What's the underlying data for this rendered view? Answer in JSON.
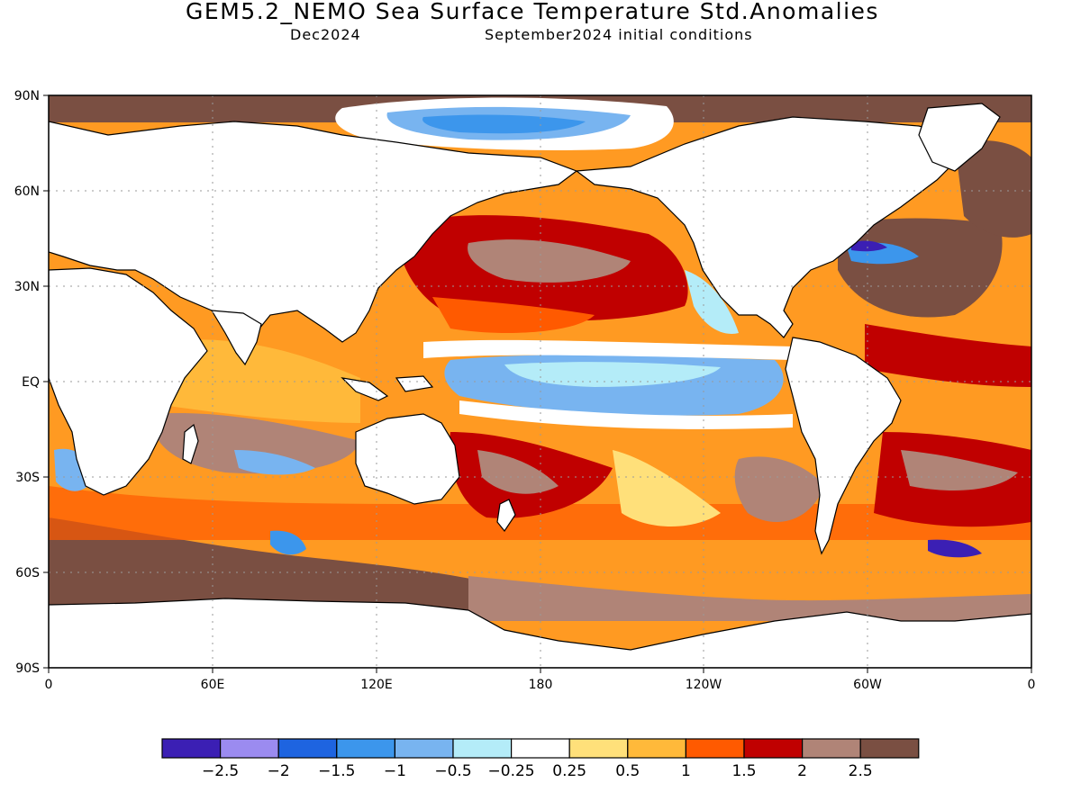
{
  "header": {
    "title": "GEM5.2_NEMO Sea Surface Temperature Std.Anomalies",
    "valid": "Dec2024",
    "init": "September2024 initial conditions"
  },
  "axes": {
    "lat_labels": [
      "90N",
      "60N",
      "30N",
      "EQ",
      "30S",
      "60S",
      "90S"
    ],
    "lon_labels": [
      "0",
      "60E",
      "120E",
      "180",
      "120W",
      "60W",
      "0"
    ]
  },
  "colorbar": {
    "colors": [
      "#3b1fb4",
      "#9b8bf0",
      "#1e64e0",
      "#3c96ec",
      "#78b4f0",
      "#b4ecf8",
      "#ffffff",
      "#ffe07a",
      "#ffb93a",
      "#ff5a00",
      "#c00000",
      "#b08477",
      "#7a4f42"
    ],
    "labels": [
      "-2.5",
      "-2",
      "-1.5",
      "-1",
      "-0.5",
      "-0.25",
      "0.25",
      "0.5",
      "1",
      "1.5",
      "2",
      "2.5"
    ]
  },
  "chart_data": {
    "type": "heatmap",
    "title": "GEM5.2_NEMO Sea Surface Temperature Std.Anomalies",
    "subtitle": [
      "Dec2024",
      "September2024 initial conditions"
    ],
    "x_ticks": [
      "0",
      "60E",
      "120E",
      "180",
      "120W",
      "60W",
      "0"
    ],
    "y_ticks": [
      "90N",
      "60N",
      "30N",
      "EQ",
      "30S",
      "60S",
      "90S"
    ],
    "contour_levels": [
      -2.5,
      -2,
      -1.5,
      -1,
      -0.5,
      -0.25,
      0.25,
      0.5,
      1,
      1.5,
      2,
      2.5
    ],
    "legend_placement": "bottom"
  }
}
